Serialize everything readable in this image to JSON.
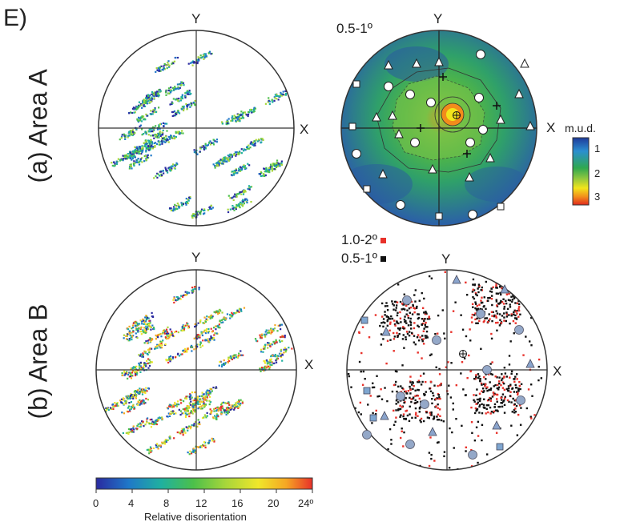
{
  "panel_letter": "E)",
  "rows": [
    {
      "label": "(a) Area A"
    },
    {
      "label": "(b) Area B"
    }
  ],
  "axes": {
    "x": "X",
    "y": "Y"
  },
  "area_a_right": {
    "range_label": "0.5-1º"
  },
  "area_b_right": {
    "legend": [
      {
        "label": "1.0-2º",
        "color": "#e8312a"
      },
      {
        "label": "0.5-1º",
        "color": "#111111"
      }
    ]
  },
  "mud_colorbar": {
    "title": "m.u.d.",
    "ticks": [
      "1",
      "2",
      "3"
    ],
    "colors": [
      "#1e3a9a",
      "#2b8fd0",
      "#2fa84f",
      "#8cc63f",
      "#f2e51b",
      "#f28c1b",
      "#e0281e"
    ]
  },
  "disorientation_colorbar": {
    "title": "Relative disorientation",
    "ticks": [
      "0",
      "4",
      "8",
      "12",
      "16",
      "20",
      "24º"
    ],
    "colors": [
      "#2a2aa0",
      "#1f78c8",
      "#1fb0a0",
      "#4cc04a",
      "#a8d63a",
      "#f0e62a",
      "#f5a623",
      "#e8312a"
    ]
  }
}
